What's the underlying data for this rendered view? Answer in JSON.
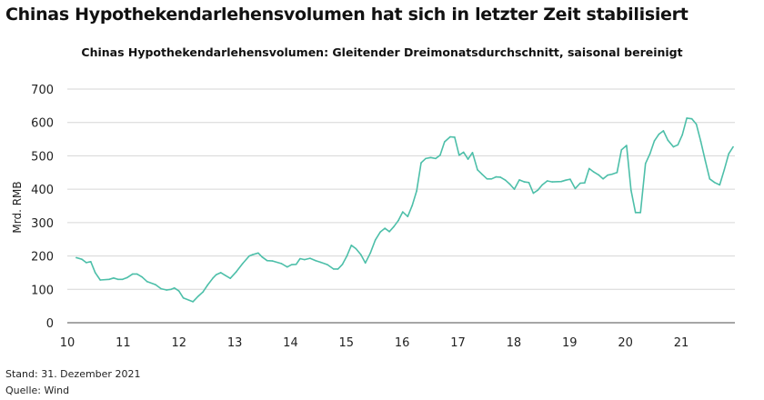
{
  "title": "Chinas Hypothekendarlehensvolumen hat sich in letzter Zeit stabilisiert",
  "footer": {
    "stand": "Stand: 31. Dezember 2021",
    "source": "Quelle: Wind"
  },
  "chart_data": {
    "type": "line",
    "title": "Chinas Hypothekendarlehensvolumen: Gleitender Dreimonatsdurchschnitt, saisonal bereinigt",
    "xlabel": "",
    "ylabel": "Mrd. RMB",
    "xlim": [
      10,
      21.96
    ],
    "ylim": [
      0,
      700
    ],
    "xticks": [
      "10",
      "11",
      "12",
      "13",
      "14",
      "15",
      "16",
      "17",
      "18",
      "19",
      "20",
      "21"
    ],
    "yticks": [
      "0",
      "100",
      "200",
      "300",
      "400",
      "500",
      "600",
      "700"
    ],
    "grid": "horizontal",
    "color": "#4dbfa9",
    "x": [
      10.16,
      10.26,
      10.34,
      10.42,
      10.5,
      10.59,
      10.75,
      10.83,
      10.91,
      10.99,
      11.07,
      11.17,
      11.25,
      11.34,
      11.43,
      11.58,
      11.68,
      11.78,
      11.86,
      11.92,
      12.0,
      12.08,
      12.25,
      12.35,
      12.43,
      12.51,
      12.61,
      12.67,
      12.75,
      12.83,
      12.92,
      13.03,
      13.14,
      13.26,
      13.32,
      13.42,
      13.49,
      13.58,
      13.68,
      13.84,
      13.94,
      14.02,
      14.1,
      14.17,
      14.25,
      14.35,
      14.45,
      14.54,
      14.66,
      14.77,
      14.85,
      14.93,
      15.01,
      15.09,
      15.17,
      15.26,
      15.34,
      15.43,
      15.52,
      15.61,
      15.69,
      15.77,
      15.85,
      15.93,
      16.01,
      16.1,
      16.18,
      16.26,
      16.34,
      16.42,
      16.51,
      16.6,
      16.68,
      16.76,
      16.86,
      16.94,
      17.02,
      17.1,
      17.18,
      17.26,
      17.35,
      17.43,
      17.52,
      17.6,
      17.68,
      17.76,
      17.85,
      17.93,
      18.01,
      18.1,
      18.19,
      18.27,
      18.35,
      18.43,
      18.51,
      18.6,
      18.69,
      18.85,
      18.93,
      19.01,
      19.1,
      19.19,
      19.27,
      19.35,
      19.43,
      19.52,
      19.6,
      19.68,
      19.76,
      19.85,
      19.93,
      20.02,
      20.1,
      20.18,
      20.27,
      20.36,
      20.44,
      20.52,
      20.6,
      20.68,
      20.76,
      20.86,
      20.94,
      21.02,
      21.1,
      21.19,
      21.27,
      21.35,
      21.43,
      21.51,
      21.6,
      21.69,
      21.77,
      21.85,
      21.93
    ],
    "y": [
      195,
      190,
      180,
      183,
      150,
      128,
      130,
      134,
      130,
      130,
      135,
      146,
      146,
      137,
      123,
      114,
      102,
      98,
      100,
      104,
      95,
      74,
      63,
      80,
      92,
      112,
      134,
      144,
      150,
      142,
      133,
      153,
      177,
      200,
      204,
      209,
      197,
      186,
      185,
      177,
      167,
      174,
      175,
      192,
      189,
      193,
      186,
      181,
      174,
      161,
      161,
      175,
      200,
      232,
      222,
      204,
      179,
      209,
      248,
      272,
      283,
      273,
      288,
      306,
      332,
      318,
      351,
      395,
      479,
      492,
      495,
      492,
      502,
      542,
      557,
      556,
      502,
      511,
      490,
      510,
      458,
      445,
      431,
      431,
      437,
      436,
      427,
      415,
      400,
      428,
      422,
      420,
      388,
      397,
      413,
      425,
      422,
      423,
      427,
      430,
      402,
      418,
      419,
      462,
      452,
      443,
      431,
      442,
      445,
      450,
      518,
      531,
      397,
      330,
      330,
      477,
      506,
      545,
      565,
      575,
      547,
      527,
      533,
      563,
      613,
      611,
      595,
      543,
      486,
      431,
      420,
      413,
      458,
      506,
      527
    ]
  }
}
